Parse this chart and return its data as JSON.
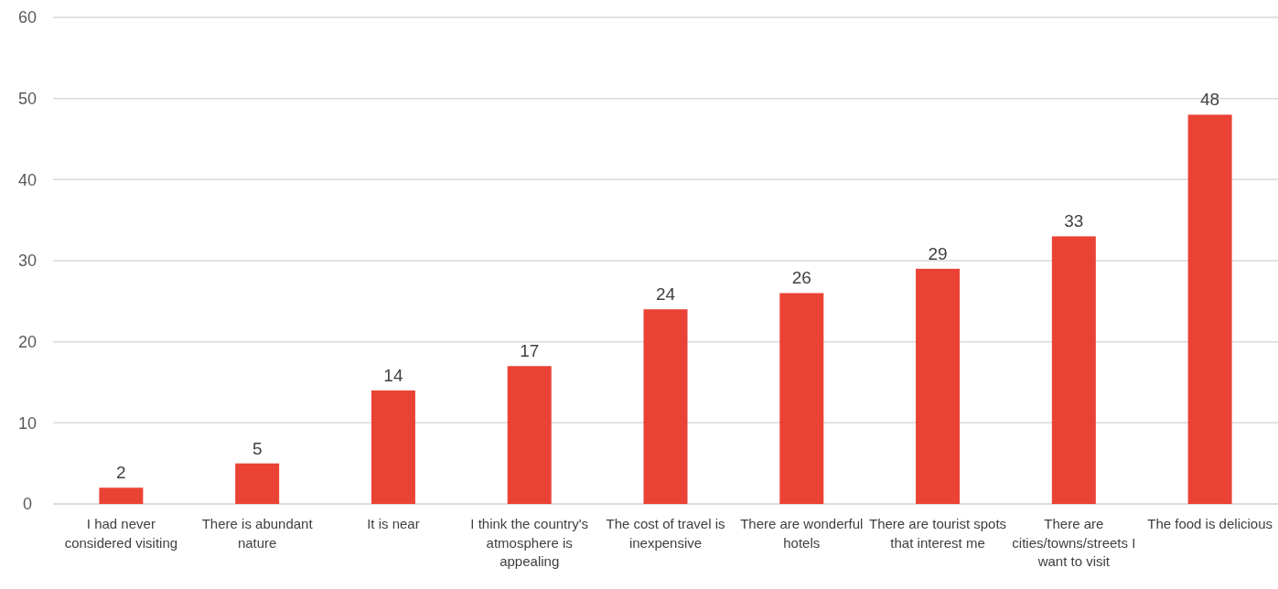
{
  "chart_data": {
    "type": "bar",
    "categories": [
      "I had never considered visiting",
      "There is abundant nature",
      "It is near",
      "I think the country's atmosphere is appealing",
      "The cost of travel is inexpensive",
      "There are wonderful hotels",
      "There are tourist spots that interest me",
      "There are cities/towns/streets I want to visit",
      "The food is delicious"
    ],
    "values": [
      2,
      5,
      14,
      17,
      24,
      26,
      29,
      33,
      48
    ],
    "color": "#ea4335",
    "ylim": [
      0,
      60
    ],
    "yticks": [
      0,
      10,
      20,
      30,
      40,
      50,
      60
    ],
    "grid": "y",
    "data_labels": true
  }
}
